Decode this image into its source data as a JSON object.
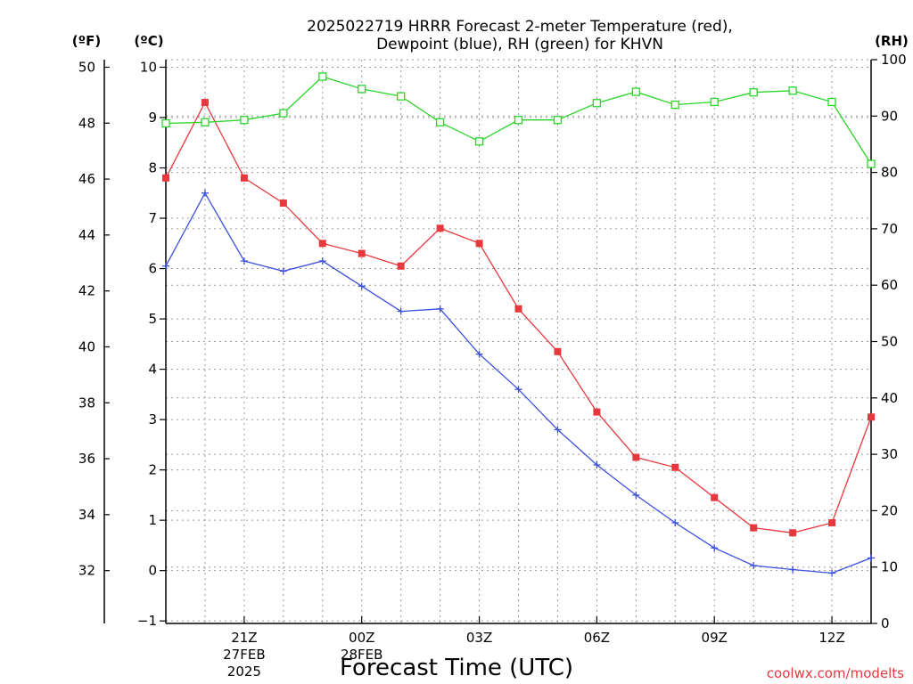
{
  "chart_data": {
    "type": "line",
    "title_lines": [
      "2025022719 HRRR Forecast 2-meter Temperature (red),",
      "Dewpoint (blue), RH (green) for KHVN"
    ],
    "xlabel": "Forecast Time (UTC)",
    "units": {
      "left_f": "(ºF)",
      "left_c": "(ºC)",
      "right_rh": "(RH)"
    },
    "x_hours": [
      19,
      20,
      21,
      22,
      23,
      24,
      25,
      26,
      27,
      28,
      29,
      30,
      31,
      32,
      33,
      34,
      35,
      36,
      37
    ],
    "x_ticks": [
      {
        "hour": 21,
        "label": "21Z",
        "sub": [
          "27FEB",
          "2025"
        ]
      },
      {
        "hour": 24,
        "label": "00Z",
        "sub": [
          "28FEB"
        ]
      },
      {
        "hour": 27,
        "label": "03Z",
        "sub": []
      },
      {
        "hour": 30,
        "label": "06Z",
        "sub": []
      },
      {
        "hour": 33,
        "label": "09Z",
        "sub": []
      },
      {
        "hour": 36,
        "label": "12Z",
        "sub": []
      }
    ],
    "x_range": [
      19,
      37
    ],
    "celsius_range": [
      -1.05,
      10.15
    ],
    "celsius_ticks": [
      -1,
      0,
      1,
      2,
      3,
      4,
      5,
      6,
      7,
      8,
      9,
      10
    ],
    "fahrenheit_ticks": [
      32,
      34,
      36,
      38,
      40,
      42,
      44,
      46,
      48,
      50
    ],
    "rh_range": [
      0,
      100
    ],
    "rh_ticks": [
      0,
      10,
      20,
      30,
      40,
      50,
      60,
      70,
      80,
      90,
      100
    ],
    "grid": true,
    "series": [
      {
        "name": "Temperature",
        "color": "#e8383d",
        "axis": "celsius",
        "marker": "filled-square",
        "values": [
          7.8,
          9.3,
          7.8,
          7.3,
          6.5,
          6.3,
          6.05,
          6.8,
          6.5,
          5.2,
          4.35,
          3.15,
          2.25,
          2.05,
          1.45,
          0.85,
          0.75,
          0.95,
          3.05
        ]
      },
      {
        "name": "Dewpoint",
        "color": "#3a4fe0",
        "axis": "celsius",
        "marker": "plus",
        "values": [
          6.05,
          7.5,
          6.15,
          5.95,
          6.15,
          5.65,
          5.15,
          5.2,
          4.3,
          3.6,
          2.8,
          2.1,
          1.5,
          0.95,
          0.45,
          0.1,
          0.02,
          -0.05,
          0.25
        ]
      },
      {
        "name": "RH",
        "color": "#2bd42b",
        "axis": "rh",
        "marker": "hollow-square",
        "values": [
          88.7,
          88.9,
          89.3,
          90.5,
          97.0,
          94.8,
          93.5,
          88.9,
          85.5,
          89.3,
          89.3,
          92.3,
          94.3,
          92.0,
          92.5,
          94.2,
          94.5,
          92.5,
          81.5
        ]
      }
    ]
  },
  "credit": "coolwx.com/modelts"
}
